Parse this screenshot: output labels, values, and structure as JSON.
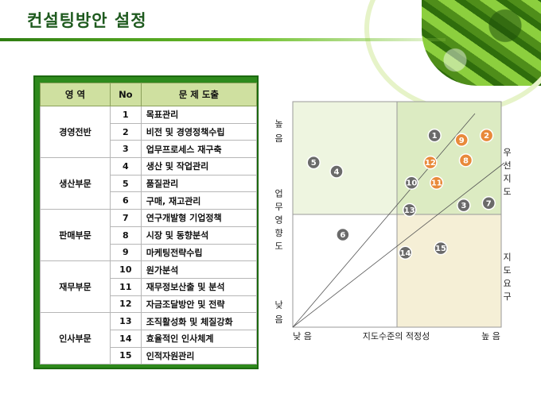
{
  "slide": {
    "title": "컨설팅방안 설정"
  },
  "table": {
    "headers": {
      "area": "영  역",
      "no": "No",
      "problem": "문 제 도출"
    },
    "groups": [
      {
        "area": "경영전반",
        "rows": [
          {
            "no": "1",
            "problem": "목표관리"
          },
          {
            "no": "2",
            "problem": "비전 및 경영정책수립"
          },
          {
            "no": "3",
            "problem": "업무프로세스 재구축"
          }
        ]
      },
      {
        "area": "생산부문",
        "rows": [
          {
            "no": "4",
            "problem": "생산 및 작업관리"
          },
          {
            "no": "5",
            "problem": "품질관리"
          },
          {
            "no": "6",
            "problem": "구매, 재고관리"
          }
        ]
      },
      {
        "area": "판매부문",
        "rows": [
          {
            "no": "7",
            "problem": "연구개발형 기업정책"
          },
          {
            "no": "8",
            "problem": "시장 및 동향분석"
          },
          {
            "no": "9",
            "problem": "마케팅전략수립"
          }
        ]
      },
      {
        "area": "재무부문",
        "rows": [
          {
            "no": "10",
            "problem": "원가분석"
          },
          {
            "no": "11",
            "problem": "재무정보산출 및 분석"
          },
          {
            "no": "12",
            "problem": "자금조달방안 및 전략"
          }
        ]
      },
      {
        "area": "인사부문",
        "rows": [
          {
            "no": "13",
            "problem": "조직활성화 및 체질강화"
          },
          {
            "no": "14",
            "problem": "효율적인 인사체계"
          },
          {
            "no": "15",
            "problem": "인적자원관리"
          }
        ]
      }
    ]
  },
  "chart": {
    "y_high": "높 음",
    "y_low": "낮 음",
    "y_label": "업 무 영 향 도",
    "x_low": "낮 음",
    "x_label": "지도수준의 적정성",
    "x_high": "높 음",
    "right_label_top": "우 선 지 도",
    "right_label_bottom": "지 도 요 구",
    "colors": {
      "quadrant_top_right": "#dcebc2",
      "quadrant_bottom_left": "#eef5e0",
      "quadrant_bottom_right": "#f5efd6",
      "bubble_gray": "#6a6a6a",
      "bubble_orange": "#e8893a"
    }
  },
  "chart_data": {
    "type": "scatter",
    "x_range": [
      0,
      100
    ],
    "y_range": [
      0,
      100
    ],
    "quadrant_split": {
      "x": 50,
      "y": 50
    },
    "points": [
      {
        "label": "1",
        "x": 68,
        "y": 85,
        "color": "gray"
      },
      {
        "label": "2",
        "x": 93,
        "y": 85,
        "color": "orange"
      },
      {
        "label": "3",
        "x": 82,
        "y": 54,
        "color": "gray"
      },
      {
        "label": "4",
        "x": 21,
        "y": 69,
        "color": "gray"
      },
      {
        "label": "5",
        "x": 10,
        "y": 73,
        "color": "gray"
      },
      {
        "label": "6",
        "x": 24,
        "y": 41,
        "color": "gray"
      },
      {
        "label": "7",
        "x": 94,
        "y": 55,
        "color": "gray"
      },
      {
        "label": "8",
        "x": 83,
        "y": 74,
        "color": "orange"
      },
      {
        "label": "9",
        "x": 81,
        "y": 83,
        "color": "orange"
      },
      {
        "label": "10",
        "x": 57,
        "y": 64,
        "color": "gray"
      },
      {
        "label": "11",
        "x": 69,
        "y": 64,
        "color": "orange"
      },
      {
        "label": "12",
        "x": 66,
        "y": 73,
        "color": "orange"
      },
      {
        "label": "13",
        "x": 56,
        "y": 52,
        "color": "gray"
      },
      {
        "label": "14",
        "x": 54,
        "y": 33,
        "color": "gray"
      },
      {
        "label": "15",
        "x": 71,
        "y": 35,
        "color": "gray"
      }
    ]
  }
}
